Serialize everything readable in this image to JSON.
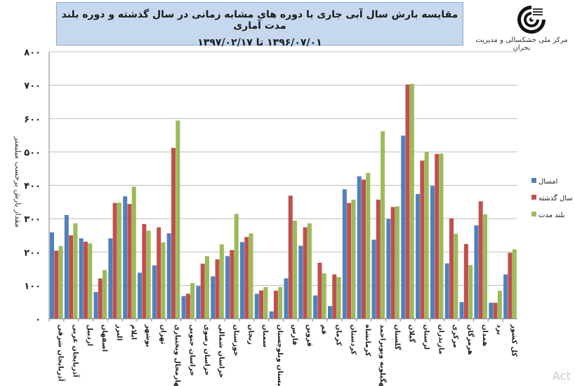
{
  "header": {
    "title_line1": "مقایسه بارش سال آبی جاری با دوره های مشابه زمانی در سال گذشته و دوره بلند مدت آماری",
    "title_line2": "۱۳۹۶/۰۷/۰۱ تا ۱۳۹۷/۰۲/۱۷",
    "org_name": "مرکز ملی خشکسالی و مدیریت بحران",
    "logo_icon": "drought-center-logo"
  },
  "watermark": "Act",
  "chart_data": {
    "type": "bar",
    "ylabel": "مقدار بارش برحسب میلیمتر",
    "ylim": [
      0,
      800
    ],
    "yticks": [
      0,
      100,
      200,
      300,
      400,
      500,
      600,
      700,
      800
    ],
    "ytick_labels": [
      "۰",
      "۱۰۰",
      "۲۰۰",
      "۳۰۰",
      "۴۰۰",
      "۵۰۰",
      "۶۰۰",
      "۷۰۰",
      "۸۰۰"
    ],
    "grid": true,
    "legend_position": "right",
    "categories": [
      "آذربایجان شرقی",
      "آذربایجان غربی",
      "اردبیل",
      "اصفهان",
      "البرز",
      "ایلام",
      "بوشهر",
      "تهران",
      "چهارمحال وبختیاری",
      "خراسان جنوبی",
      "خراسان رضوی",
      "خراسان شمالی",
      "خوزستان",
      "زنجان",
      "سمنان",
      "سیستان وبلوچستان",
      "فارس",
      "قزوین",
      "قم",
      "کرمان",
      "کردستان",
      "کرمانشاه",
      "کهگیلویه وبویراحمد",
      "گلستان",
      "گیلان",
      "لرستان",
      "مازندران",
      "مرکزی",
      "هرمزگان",
      "همدان",
      "یزد",
      "کل کشور"
    ],
    "series": [
      {
        "name": "امسال",
        "color": "#4f81bd",
        "values": [
          259,
          311,
          241,
          80,
          241,
          367,
          138,
          160,
          256,
          68,
          98,
          127,
          188,
          230,
          75,
          22,
          121,
          219,
          70,
          38,
          388,
          427,
          237,
          299,
          549,
          374,
          398,
          166,
          50,
          280,
          48,
          133
        ]
      },
      {
        "name": "سال گذشته",
        "color": "#c0504d",
        "values": [
          204,
          250,
          231,
          121,
          347,
          344,
          284,
          274,
          512,
          75,
          165,
          178,
          206,
          245,
          85,
          84,
          369,
          274,
          168,
          133,
          347,
          417,
          357,
          335,
          702,
          474,
          494,
          301,
          224,
          352,
          48,
          198
        ]
      },
      {
        "name": "بلند مدت",
        "color": "#9bbb59",
        "values": [
          218,
          286,
          226,
          146,
          348,
          396,
          264,
          229,
          594,
          107,
          188,
          223,
          314,
          256,
          95,
          95,
          294,
          286,
          136,
          125,
          357,
          437,
          562,
          337,
          704,
          500,
          495,
          255,
          161,
          313,
          84,
          208
        ]
      }
    ]
  }
}
